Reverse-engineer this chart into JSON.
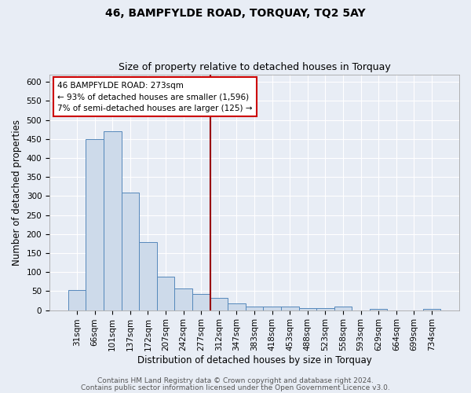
{
  "title": "46, BAMPFYLDE ROAD, TORQUAY, TQ2 5AY",
  "subtitle": "Size of property relative to detached houses in Torquay",
  "xlabel": "Distribution of detached houses by size in Torquay",
  "ylabel": "Number of detached properties",
  "categories": [
    "31sqm",
    "66sqm",
    "101sqm",
    "137sqm",
    "172sqm",
    "207sqm",
    "242sqm",
    "277sqm",
    "312sqm",
    "347sqm",
    "383sqm",
    "418sqm",
    "453sqm",
    "488sqm",
    "523sqm",
    "558sqm",
    "593sqm",
    "629sqm",
    "664sqm",
    "699sqm",
    "734sqm"
  ],
  "values": [
    52,
    450,
    470,
    310,
    178,
    88,
    57,
    42,
    33,
    17,
    10,
    9,
    9,
    5,
    5,
    9,
    0,
    4,
    0,
    0,
    4
  ],
  "bar_color": "#cddaea",
  "bar_edge_color": "#5588bb",
  "vline_color": "#990000",
  "annotation_line1": "46 BAMPFYLDE ROAD: 273sqm",
  "annotation_line2": "← 93% of detached houses are smaller (1,596)",
  "annotation_line3": "7% of semi-detached houses are larger (125) →",
  "annotation_box_color": "#ffffff",
  "annotation_box_edge": "#cc0000",
  "ylim": [
    0,
    620
  ],
  "yticks": [
    0,
    50,
    100,
    150,
    200,
    250,
    300,
    350,
    400,
    450,
    500,
    550,
    600
  ],
  "footer1": "Contains HM Land Registry data © Crown copyright and database right 2024.",
  "footer2": "Contains public sector information licensed under the Open Government Licence v3.0.",
  "bg_color": "#e8edf5",
  "plot_bg_color": "#e8edf5",
  "grid_color": "#ffffff",
  "title_fontsize": 10,
  "subtitle_fontsize": 9,
  "axis_label_fontsize": 8.5,
  "tick_fontsize": 7.5,
  "annotation_fontsize": 7.5,
  "footer_fontsize": 6.5
}
